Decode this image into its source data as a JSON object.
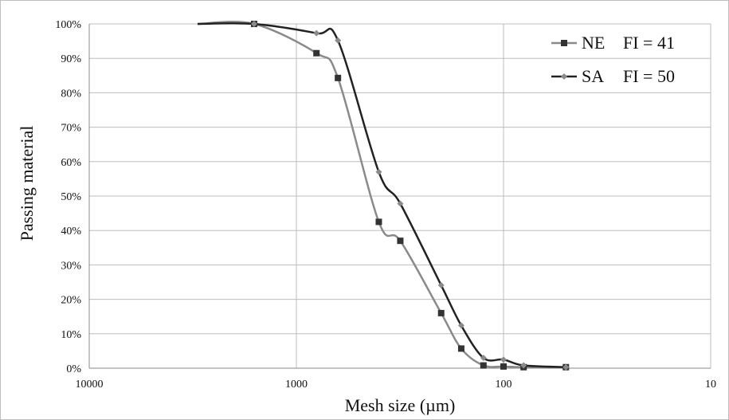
{
  "chart_data": {
    "type": "line",
    "xlabel": "Mesh size (µm)",
    "ylabel": "Passing material",
    "x_scale": "log",
    "x_reversed": true,
    "xlim": [
      10000,
      10
    ],
    "ylim": [
      0,
      100
    ],
    "x_ticks": [
      10000,
      1000,
      100,
      10
    ],
    "x_tick_labels": [
      "10000",
      "1000",
      "100",
      "10"
    ],
    "y_ticks": [
      0,
      10,
      20,
      30,
      40,
      50,
      60,
      70,
      80,
      90,
      100
    ],
    "y_tick_labels": [
      "0%",
      "10%",
      "20%",
      "30%",
      "40%",
      "50%",
      "60%",
      "70%",
      "80%",
      "90%",
      "100%"
    ],
    "grid": true,
    "legend_position": "top-right",
    "series": [
      {
        "name": "NE",
        "annotation": "FI = 41",
        "color": "#8a8a8a",
        "marker": "square",
        "marker_color": "#333333",
        "x": [
          3000,
          1600,
          800,
          630,
          400,
          315,
          200,
          160,
          125,
          100,
          80,
          50
        ],
        "y": [
          100,
          100,
          91.5,
          84.3,
          42.5,
          37,
          16,
          5.7,
          0.8,
          0.5,
          0.3,
          0.3
        ]
      },
      {
        "name": "SA",
        "annotation": "FI = 50",
        "color": "#222222",
        "marker": "diamond",
        "marker_color": "#8a8a8a",
        "x": [
          3000,
          1600,
          800,
          630,
          400,
          315,
          200,
          160,
          125,
          100,
          80,
          50
        ],
        "y": [
          100,
          100,
          97.3,
          95.2,
          57,
          47.8,
          24.1,
          12.4,
          3,
          2.5,
          0.8,
          0.3
        ]
      }
    ]
  }
}
